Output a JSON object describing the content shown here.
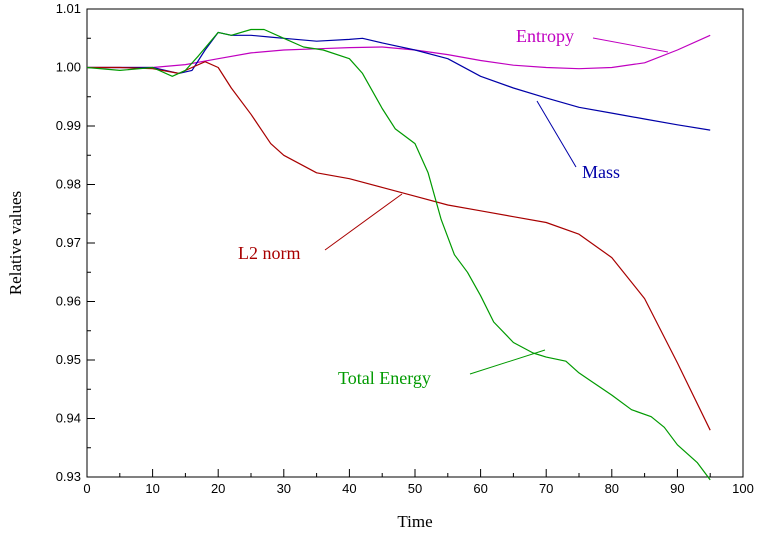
{
  "chart_data": {
    "type": "line",
    "title": "",
    "xlabel": "Time",
    "ylabel": "Relative values",
    "xlim": [
      0,
      100
    ],
    "ylim": [
      0.93,
      1.01
    ],
    "x_ticks": [
      0,
      10,
      20,
      30,
      40,
      50,
      60,
      70,
      80,
      90,
      100
    ],
    "x_tick_labels": [
      "0",
      "10",
      "20",
      "30",
      "40",
      "50",
      "60",
      "70",
      "80",
      "90",
      "100"
    ],
    "y_ticks": [
      0.93,
      0.94,
      0.95,
      0.96,
      0.97,
      0.98,
      0.99,
      1.0,
      1.01
    ],
    "y_tick_labels": [
      "0.93",
      "0.94",
      "0.95",
      "0.96",
      "0.97",
      "0.98",
      "0.99",
      "1.00",
      "1.01"
    ],
    "grid": false,
    "legend": "none (series labeled inline with leader lines)",
    "series": [
      {
        "name": "Entropy",
        "color": "#c000c0",
        "x": [
          0,
          5,
          10,
          15,
          20,
          25,
          30,
          35,
          40,
          45,
          50,
          55,
          60,
          65,
          70,
          75,
          80,
          85,
          90,
          95
        ],
        "y": [
          1.0,
          1.0,
          1.0,
          1.0005,
          1.0015,
          1.0025,
          1.003,
          1.0032,
          1.0034,
          1.0035,
          1.003,
          1.0022,
          1.0012,
          1.0004,
          1.0,
          0.9998,
          1.0,
          1.0008,
          1.003,
          1.0055
        ]
      },
      {
        "name": "Mass",
        "color": "#0000a8",
        "x": [
          0,
          5,
          10,
          12,
          14,
          16,
          18,
          20,
          22,
          25,
          28,
          30,
          35,
          40,
          42,
          45,
          50,
          55,
          60,
          65,
          70,
          75,
          80,
          85,
          90,
          95
        ],
        "y": [
          1.0,
          1.0,
          1.0,
          0.9995,
          0.999,
          0.9995,
          1.003,
          1.006,
          1.0055,
          1.0055,
          1.0052,
          1.005,
          1.0045,
          1.0048,
          1.005,
          1.0042,
          1.003,
          1.0015,
          0.9985,
          0.9965,
          0.9948,
          0.9932,
          0.9922,
          0.9912,
          0.9902,
          0.9893
        ]
      },
      {
        "name": "L2 norm",
        "color": "#a80000",
        "x": [
          0,
          5,
          10,
          14,
          16,
          18,
          20,
          22,
          25,
          28,
          30,
          35,
          40,
          45,
          50,
          55,
          60,
          65,
          70,
          75,
          80,
          85,
          90,
          95
        ],
        "y": [
          1.0,
          1.0,
          0.9998,
          0.999,
          1.0,
          1.001,
          1.0,
          0.9965,
          0.992,
          0.987,
          0.985,
          0.982,
          0.981,
          0.9795,
          0.978,
          0.9765,
          0.9755,
          0.9745,
          0.9735,
          0.9715,
          0.9675,
          0.9605,
          0.9495,
          0.938
        ]
      },
      {
        "name": "Total Energy",
        "color": "#009a00",
        "x": [
          0,
          5,
          10,
          13,
          15,
          17,
          20,
          22,
          25,
          27,
          30,
          33,
          36,
          40,
          42,
          45,
          47,
          50,
          52,
          54,
          56,
          58,
          60,
          62,
          65,
          68,
          70,
          73,
          75,
          78,
          80,
          83,
          86,
          88,
          90,
          93,
          95
        ],
        "y": [
          1.0,
          0.9995,
          1.0,
          0.9985,
          0.9995,
          1.002,
          1.006,
          1.0055,
          1.0065,
          1.0065,
          1.005,
          1.0035,
          1.003,
          1.0015,
          0.999,
          0.993,
          0.9895,
          0.987,
          0.982,
          0.974,
          0.968,
          0.965,
          0.961,
          0.9565,
          0.953,
          0.9512,
          0.9505,
          0.9498,
          0.9478,
          0.9455,
          0.944,
          0.9415,
          0.9403,
          0.9385,
          0.9355,
          0.9325,
          0.9295
        ]
      }
    ],
    "annotations": [
      {
        "series": "Entropy",
        "text": "Entropy",
        "color": "#c000c0"
      },
      {
        "series": "Mass",
        "text": "Mass",
        "color": "#0000a8"
      },
      {
        "series": "L2 norm",
        "text": "L2 norm",
        "color": "#a80000"
      },
      {
        "series": "Total Energy",
        "text": "Total Energy",
        "color": "#009a00"
      }
    ]
  }
}
